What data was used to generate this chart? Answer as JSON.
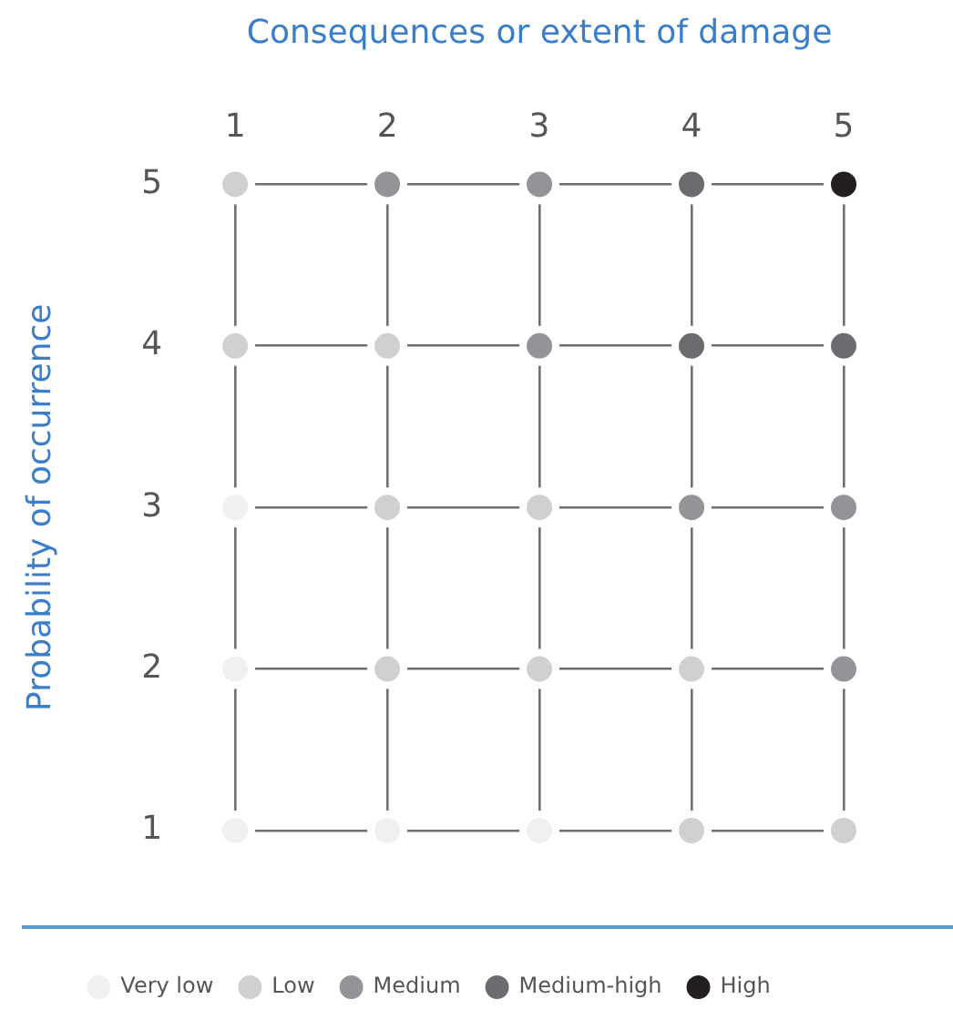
{
  "chart_data": {
    "type": "scatter",
    "xlabel": "Consequences or extent of damage",
    "ylabel": "Probability of occurrence",
    "xlim": [
      1,
      5
    ],
    "ylim": [
      1,
      5
    ],
    "xticks": [
      1,
      2,
      3,
      4,
      5
    ],
    "yticks": [
      1,
      2,
      3,
      4,
      5
    ],
    "grid": true,
    "legend": "bottom",
    "marker": "circle",
    "series": [
      {
        "name": "Very low",
        "color": "#eff0f1",
        "x": [
          1,
          1,
          1,
          2,
          3
        ],
        "values": [
          3,
          2,
          1,
          1,
          1
        ]
      },
      {
        "name": "Low",
        "color": "#cfd0d2",
        "x": [
          1,
          1,
          2,
          2,
          3,
          2,
          3,
          4,
          4,
          5
        ],
        "values": [
          5,
          4,
          4,
          3,
          3,
          2,
          2,
          2,
          1,
          1
        ]
      },
      {
        "name": "Medium",
        "color": "#939497",
        "x": [
          2,
          3,
          3,
          4,
          5,
          5
        ],
        "values": [
          5,
          5,
          4,
          3,
          3,
          2
        ]
      },
      {
        "name": "Medium-high",
        "color": "#6b6c6f",
        "x": [
          4,
          4,
          5
        ],
        "values": [
          5,
          4,
          4
        ]
      },
      {
        "name": "High",
        "color": "#231f20",
        "x": [
          5
        ],
        "values": [
          5
        ]
      }
    ]
  }
}
